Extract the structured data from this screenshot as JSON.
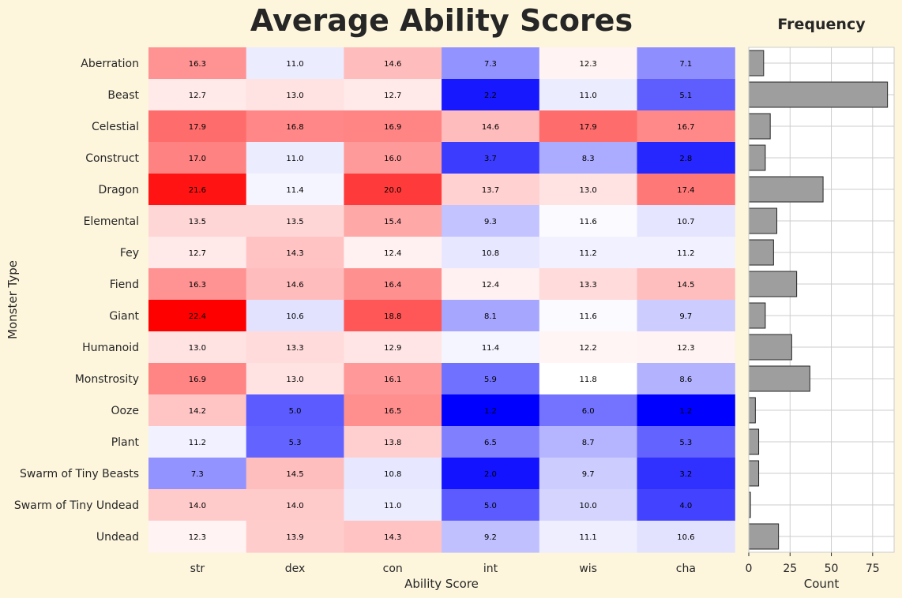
{
  "chart_data": [
    {
      "type": "heatmap",
      "title": "Average Ability Scores",
      "xlabel": "Ability Score",
      "ylabel": "Monster Type",
      "columns": [
        "str",
        "dex",
        "con",
        "int",
        "wis",
        "cha"
      ],
      "rows": [
        "Aberration",
        "Beast",
        "Celestial",
        "Construct",
        "Dragon",
        "Elemental",
        "Fey",
        "Fiend",
        "Giant",
        "Humanoid",
        "Monstrosity",
        "Ooze",
        "Plant",
        "Swarm of Tiny Beasts",
        "Swarm of Tiny Undead",
        "Undead"
      ],
      "values": [
        [
          16.3,
          11.0,
          14.6,
          7.3,
          12.3,
          7.1
        ],
        [
          12.7,
          13.0,
          12.7,
          2.2,
          11.0,
          5.1
        ],
        [
          17.9,
          16.8,
          16.9,
          14.6,
          17.9,
          16.7
        ],
        [
          17.0,
          11.0,
          16.0,
          3.7,
          8.3,
          2.8
        ],
        [
          21.6,
          11.4,
          20.0,
          13.7,
          13.0,
          17.4
        ],
        [
          13.5,
          13.5,
          15.4,
          9.3,
          11.6,
          10.7
        ],
        [
          12.7,
          14.3,
          12.4,
          10.8,
          11.2,
          11.2
        ],
        [
          16.3,
          14.6,
          16.4,
          12.4,
          13.3,
          14.5
        ],
        [
          22.4,
          10.6,
          18.8,
          8.1,
          11.6,
          9.7
        ],
        [
          13.0,
          13.3,
          12.9,
          11.4,
          12.2,
          12.3
        ],
        [
          16.9,
          13.0,
          16.1,
          5.9,
          11.8,
          8.6
        ],
        [
          14.2,
          5.0,
          16.5,
          1.2,
          6.0,
          1.2
        ],
        [
          11.2,
          5.3,
          13.8,
          6.5,
          8.7,
          5.3
        ],
        [
          7.3,
          14.5,
          10.8,
          2.0,
          9.7,
          3.2
        ],
        [
          14.0,
          14.0,
          11.0,
          5.0,
          10.0,
          4.0
        ],
        [
          12.3,
          13.9,
          14.3,
          9.2,
          11.1,
          10.6
        ]
      ],
      "colormap": "bwr",
      "center": 11.8,
      "color_range": [
        1.2,
        22.4
      ],
      "colors": {
        "low": "#0000ff",
        "mid": "#ffffff",
        "high": "#ff0000"
      },
      "cell_label_color": "#000000"
    },
    {
      "type": "bar",
      "orientation": "horizontal",
      "title": "Frequency",
      "xlabel": "Count",
      "categories": [
        "Aberration",
        "Beast",
        "Celestial",
        "Construct",
        "Dragon",
        "Elemental",
        "Fey",
        "Fiend",
        "Giant",
        "Humanoid",
        "Monstrosity",
        "Ooze",
        "Plant",
        "Swarm of Tiny Beasts",
        "Swarm of Tiny Undead",
        "Undead"
      ],
      "values": [
        9,
        84,
        13,
        10,
        45,
        17,
        15,
        29,
        10,
        26,
        37,
        4,
        6,
        6,
        1,
        18
      ],
      "xlim": [
        0,
        88
      ],
      "xticks": [
        0,
        25,
        50,
        75
      ],
      "grid": true,
      "bar_color": "#9e9e9e",
      "bar_edge_color": "#262626"
    }
  ]
}
